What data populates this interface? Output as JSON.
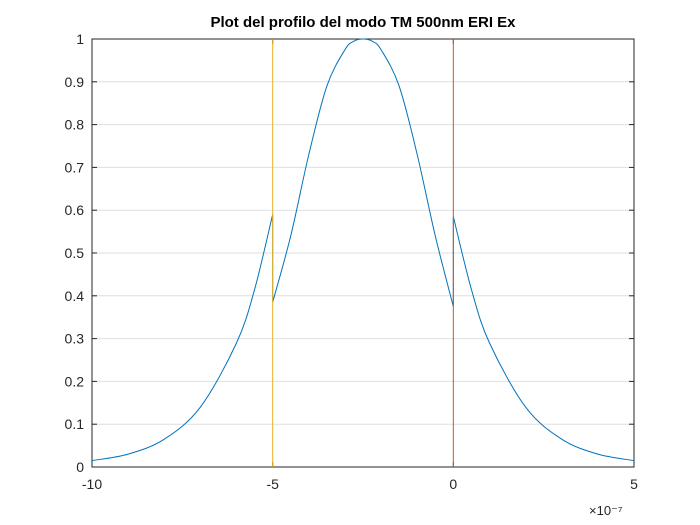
{
  "chart_data": {
    "type": "line",
    "title": "Plot del profilo del modo TM 500nm ERI Ex",
    "xlabel": "",
    "ylabel": "",
    "xlim": [
      -1e-06,
      5e-07
    ],
    "ylim": [
      0,
      1
    ],
    "x_tick_values": [
      -10,
      -5,
      0,
      5
    ],
    "x_tick_labels": [
      "-10",
      "-5",
      "0",
      "5"
    ],
    "x_exponent_label": "×10⁻⁷",
    "y_tick_values": [
      0,
      0.1,
      0.2,
      0.3,
      0.4,
      0.5,
      0.6,
      0.7,
      0.8,
      0.9,
      1
    ],
    "y_tick_labels": [
      "0",
      "0.1",
      "0.2",
      "0.3",
      "0.4",
      "0.5",
      "0.6",
      "0.7",
      "0.8",
      "0.9",
      "1"
    ],
    "grid": "horizontal",
    "box": true,
    "series": [
      {
        "color": "#0072BD",
        "x": [
          -1e-06,
          -9e-07,
          -8e-07,
          -7e-07,
          -6e-07,
          -5.5e-07,
          -5e-07,
          -5e-07,
          -5e-07,
          -4.5e-07,
          -4e-07,
          -3.5e-07,
          -3e-07,
          -2.75e-07,
          -2.5e-07,
          -2.25e-07,
          -2e-07,
          -1.5e-07,
          -1e-07,
          -5e-08,
          0,
          0,
          0,
          5e-08,
          1e-07,
          2e-07,
          3e-07,
          4e-07,
          5e-07
        ],
        "y": [
          0.015,
          0.03,
          0.065,
          0.14,
          0.29,
          0.415,
          0.59,
          0.45,
          0.385,
          0.54,
          0.73,
          0.89,
          0.975,
          0.995,
          1.0,
          0.995,
          0.975,
          0.89,
          0.73,
          0.54,
          0.375,
          0.45,
          0.585,
          0.415,
          0.29,
          0.14,
          0.065,
          0.03,
          0.015
        ]
      },
      {
        "color": "#EDB120",
        "x": [
          -5e-07,
          -5e-07
        ],
        "y": [
          0,
          1
        ]
      },
      {
        "color": "#D95319",
        "x": [
          0,
          0
        ],
        "y": [
          0,
          1
        ]
      }
    ]
  }
}
